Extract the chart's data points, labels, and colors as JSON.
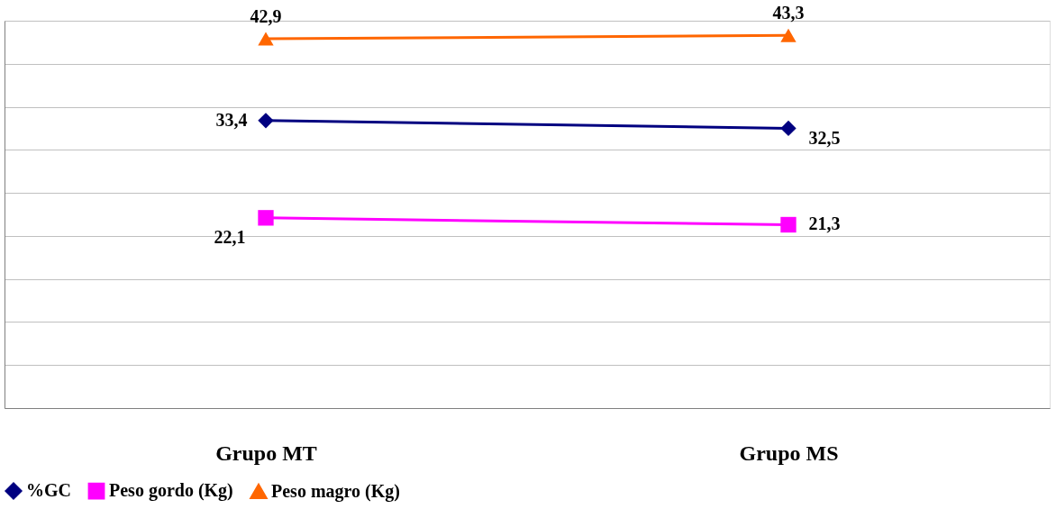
{
  "chart_data": {
    "type": "line",
    "categories": [
      "Grupo MT",
      "Grupo MS"
    ],
    "series": [
      {
        "name": "%GC",
        "color": "#000080",
        "values": [
          33.4,
          32.5
        ],
        "marker": "diamond",
        "value_labels": [
          "33,4",
          "32,5"
        ]
      },
      {
        "name": "Peso gordo (Kg)",
        "color": "#ff00ff",
        "values": [
          22.1,
          21.3
        ],
        "marker": "square",
        "value_labels": [
          "22,1",
          "21,3"
        ]
      },
      {
        "name": "Peso magro (Kg)",
        "color": "#ff6600",
        "values": [
          42.9,
          43.3
        ],
        "marker": "triangle",
        "value_labels": [
          "42,9",
          "43,3"
        ]
      }
    ],
    "tick_labels": "x",
    "grid": "y",
    "legend": "bottom",
    "line_style": "solid"
  }
}
